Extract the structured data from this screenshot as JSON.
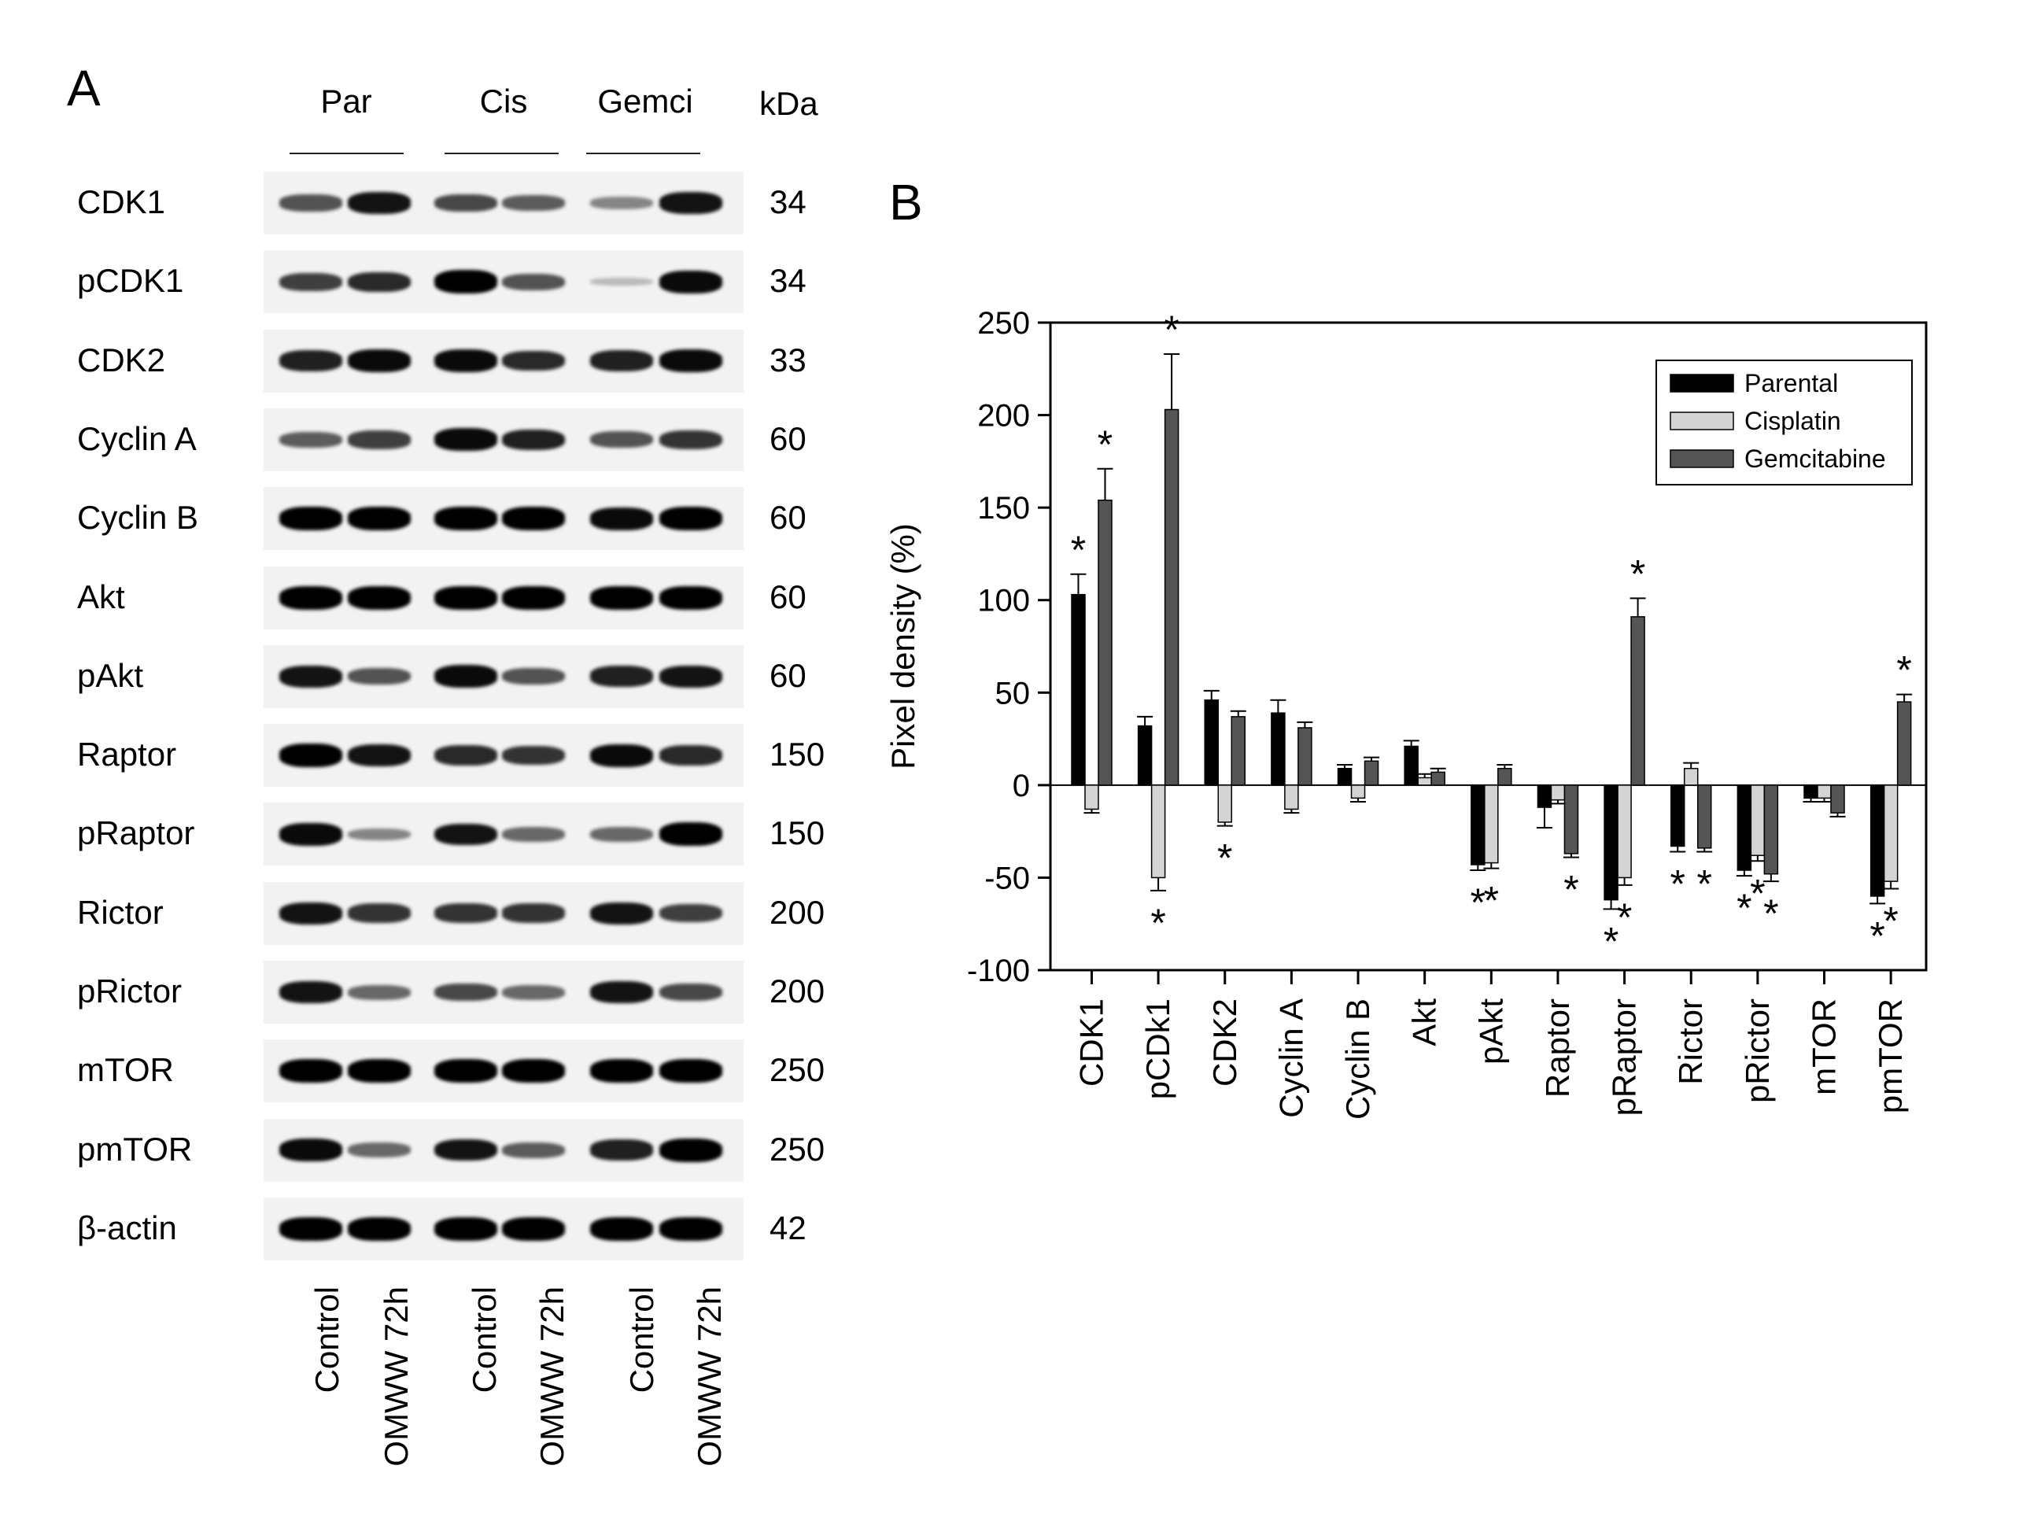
{
  "panel_a": {
    "letter": "A",
    "groups": [
      "Par",
      "Cis",
      "Gemci"
    ],
    "kda_header": "kDa",
    "lanes": [
      "Control",
      "OMWW 72h",
      "Control",
      "OMWW 72h",
      "Control",
      "OMWW 72h"
    ],
    "proteins": [
      {
        "name": "CDK1",
        "kda": "34",
        "bands": [
          0.6,
          0.9,
          0.65,
          0.55,
          0.35,
          0.9
        ]
      },
      {
        "name": "pCDK1",
        "kda": "34",
        "bands": [
          0.7,
          0.8,
          1.0,
          0.6,
          0.1,
          0.95
        ]
      },
      {
        "name": "CDK2",
        "kda": "33",
        "bands": [
          0.85,
          0.95,
          0.95,
          0.8,
          0.85,
          0.95
        ]
      },
      {
        "name": "Cyclin A",
        "kda": "60",
        "bands": [
          0.55,
          0.7,
          0.95,
          0.85,
          0.6,
          0.75
        ]
      },
      {
        "name": "Cyclin B",
        "kda": "60",
        "bands": [
          1.0,
          1.0,
          1.0,
          1.0,
          0.95,
          1.0
        ]
      },
      {
        "name": "Akt",
        "kda": "60",
        "bands": [
          1.0,
          1.0,
          1.0,
          1.0,
          1.0,
          1.0
        ]
      },
      {
        "name": "pAkt",
        "kda": "60",
        "bands": [
          0.9,
          0.6,
          0.95,
          0.6,
          0.85,
          0.9
        ]
      },
      {
        "name": "Raptor",
        "kda": "150",
        "bands": [
          1.0,
          0.9,
          0.8,
          0.75,
          0.95,
          0.8
        ]
      },
      {
        "name": "pRaptor",
        "kda": "150",
        "bands": [
          0.95,
          0.35,
          0.9,
          0.5,
          0.5,
          1.0
        ]
      },
      {
        "name": "Rictor",
        "kda": "200",
        "bands": [
          0.9,
          0.75,
          0.75,
          0.75,
          0.9,
          0.7
        ]
      },
      {
        "name": "pRictor",
        "kda": "200",
        "bands": [
          0.9,
          0.5,
          0.65,
          0.5,
          0.9,
          0.65
        ]
      },
      {
        "name": "mTOR",
        "kda": "250",
        "bands": [
          1.0,
          1.0,
          1.0,
          1.0,
          1.0,
          1.0
        ]
      },
      {
        "name": "pmTOR",
        "kda": "250",
        "bands": [
          0.95,
          0.5,
          0.9,
          0.55,
          0.85,
          1.0
        ]
      },
      {
        "name": "β-actin",
        "kda": "42",
        "bands": [
          1.0,
          1.0,
          1.0,
          1.0,
          1.0,
          1.0
        ]
      }
    ]
  },
  "panel_b": {
    "letter": "B"
  },
  "chart_data": {
    "type": "bar",
    "ylabel": "Pixel density (%)",
    "xlabel": "",
    "ylim": [
      -100,
      250
    ],
    "yticks": [
      -100,
      -50,
      0,
      50,
      100,
      150,
      200,
      250
    ],
    "legend_position": "top-right",
    "categories": [
      "CDK1",
      "pCDk1",
      "CDK2",
      "Cyclin A",
      "Cyclin B",
      "Akt",
      "pAkt",
      "Raptor",
      "pRaptor",
      "Rictor",
      "pRictor",
      "mTOR",
      "pmTOR"
    ],
    "series": [
      {
        "name": "Parental",
        "color": "#000000",
        "values": [
          103,
          32,
          46,
          39,
          9,
          21,
          -43,
          -12,
          -62,
          -33,
          -46,
          -7,
          -60
        ],
        "errors": [
          11,
          5,
          5,
          7,
          2,
          3,
          3,
          11,
          5,
          3,
          3,
          2,
          4
        ]
      },
      {
        "name": "Cisplatin",
        "color": "#d4d4d4",
        "values": [
          -13,
          -50,
          -20,
          -13,
          -7,
          4,
          -42,
          -8,
          -50,
          9,
          -38,
          -7,
          -52
        ],
        "errors": [
          2,
          7,
          2,
          2,
          2,
          2,
          3,
          2,
          4,
          3,
          3,
          2,
          4
        ]
      },
      {
        "name": "Gemcitabine",
        "color": "#555555",
        "values": [
          154,
          203,
          37,
          31,
          13,
          7,
          9,
          -37,
          91,
          -34,
          -48,
          -15,
          45
        ],
        "errors": [
          17,
          30,
          3,
          3,
          2,
          2,
          2,
          2,
          10,
          2,
          4,
          2,
          4
        ]
      }
    ],
    "significance": [
      {
        "category": "CDK1",
        "series": "Parental",
        "label": "*"
      },
      {
        "category": "CDK1",
        "series": "Gemcitabine",
        "label": "*"
      },
      {
        "category": "pCDk1",
        "series": "Cisplatin",
        "label": "*"
      },
      {
        "category": "pCDk1",
        "series": "Gemcitabine",
        "label": "*"
      },
      {
        "category": "CDK2",
        "series": "Cisplatin",
        "label": "*"
      },
      {
        "category": "pAkt",
        "series": "Parental",
        "label": "*"
      },
      {
        "category": "pAkt",
        "series": "Cisplatin",
        "label": "*"
      },
      {
        "category": "Raptor",
        "series": "Gemcitabine",
        "label": "*"
      },
      {
        "category": "pRaptor",
        "series": "Parental",
        "label": "*"
      },
      {
        "category": "pRaptor",
        "series": "Cisplatin",
        "label": "*"
      },
      {
        "category": "pRaptor",
        "series": "Gemcitabine",
        "label": "*"
      },
      {
        "category": "Rictor",
        "series": "Parental",
        "label": "*"
      },
      {
        "category": "Rictor",
        "series": "Gemcitabine",
        "label": "*"
      },
      {
        "category": "pRictor",
        "series": "Parental",
        "label": "*"
      },
      {
        "category": "pRictor",
        "series": "Cisplatin",
        "label": "*"
      },
      {
        "category": "pRictor",
        "series": "Gemcitabine",
        "label": "*"
      },
      {
        "category": "pmTOR",
        "series": "Parental",
        "label": "*"
      },
      {
        "category": "pmTOR",
        "series": "Cisplatin",
        "label": "*"
      },
      {
        "category": "pmTOR",
        "series": "Gemcitabine",
        "label": "*"
      }
    ]
  }
}
